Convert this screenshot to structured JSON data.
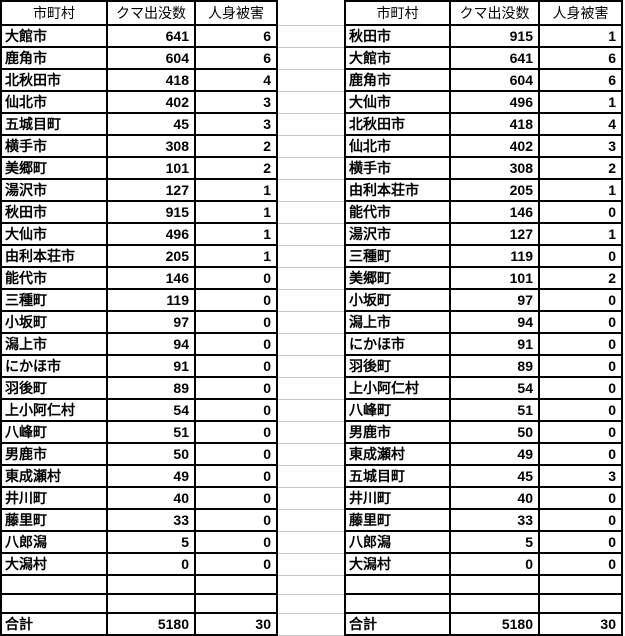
{
  "left_table": {
    "headers": {
      "municipality": "市町村",
      "sightings": "クマ出没数",
      "injuries": "人身被害"
    },
    "rows": [
      [
        "大館市",
        641,
        6
      ],
      [
        "鹿角市",
        604,
        6
      ],
      [
        "北秋田市",
        418,
        4
      ],
      [
        "仙北市",
        402,
        3
      ],
      [
        "五城目町",
        45,
        3
      ],
      [
        "横手市",
        308,
        2
      ],
      [
        "美郷町",
        101,
        2
      ],
      [
        "湯沢市",
        127,
        1
      ],
      [
        "秋田市",
        915,
        1
      ],
      [
        "大仙市",
        496,
        1
      ],
      [
        "由利本荘市",
        205,
        1
      ],
      [
        "能代市",
        146,
        0
      ],
      [
        "三種町",
        119,
        0
      ],
      [
        "小坂町",
        97,
        0
      ],
      [
        "潟上市",
        94,
        0
      ],
      [
        "にかほ市",
        91,
        0
      ],
      [
        "羽後町",
        89,
        0
      ],
      [
        "上小阿仁村",
        54,
        0
      ],
      [
        "八峰町",
        51,
        0
      ],
      [
        "男鹿市",
        50,
        0
      ],
      [
        "東成瀬村",
        49,
        0
      ],
      [
        "井川町",
        40,
        0
      ],
      [
        "藤里町",
        33,
        0
      ],
      [
        "八郎潟",
        5,
        0
      ],
      [
        "大潟村",
        0,
        0
      ]
    ],
    "total": [
      "合計",
      5180,
      30
    ]
  },
  "right_table": {
    "headers": {
      "municipality": "市町村",
      "sightings": "クマ出没数",
      "injuries": "人身被害"
    },
    "rows": [
      [
        "秋田市",
        915,
        1
      ],
      [
        "大館市",
        641,
        6
      ],
      [
        "鹿角市",
        604,
        6
      ],
      [
        "大仙市",
        496,
        1
      ],
      [
        "北秋田市",
        418,
        4
      ],
      [
        "仙北市",
        402,
        3
      ],
      [
        "横手市",
        308,
        2
      ],
      [
        "由利本荘市",
        205,
        1
      ],
      [
        "能代市",
        146,
        0
      ],
      [
        "湯沢市",
        127,
        1
      ],
      [
        "三種町",
        119,
        0
      ],
      [
        "美郷町",
        101,
        2
      ],
      [
        "小坂町",
        97,
        0
      ],
      [
        "潟上市",
        94,
        0
      ],
      [
        "にかほ市",
        91,
        0
      ],
      [
        "羽後町",
        89,
        0
      ],
      [
        "上小阿仁村",
        54,
        0
      ],
      [
        "八峰町",
        51,
        0
      ],
      [
        "男鹿市",
        50,
        0
      ],
      [
        "東成瀬村",
        49,
        0
      ],
      [
        "五城目町",
        45,
        3
      ],
      [
        "井川町",
        40,
        0
      ],
      [
        "藤里町",
        33,
        0
      ],
      [
        "八郎潟",
        5,
        0
      ],
      [
        "大潟村",
        0,
        0
      ]
    ],
    "total": [
      "合計",
      5180,
      30
    ]
  },
  "empty_row_count": 2,
  "colors": {
    "table_border": "#000000",
    "gridline": "#c6c6c6",
    "text": "#000000",
    "background": "#ffffff"
  }
}
